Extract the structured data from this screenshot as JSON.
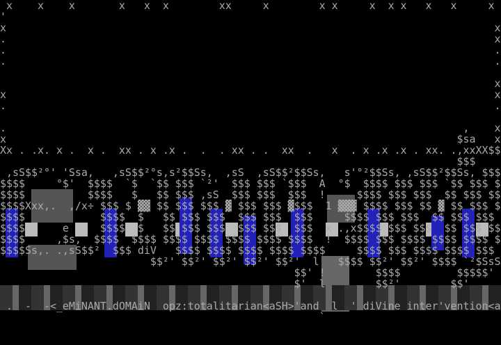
{
  "lines": [
    " x    x    x       x   x  x        xx     x        x x     x  x x   x   x     x  xx",
    "'",
    "x                                                                              x",
    ".                                                                              x",
    ".                                                                              .",
    ".                                                                              .",
    "",
    "                                                                               x",
    "x                                                                              x",
    ".                                                                              .",
    "                                                                               ",
    ".                                                                         ,    x",
    "x                                                                        $sa   x",
    "Xx . .x. x .  x .  xx . x .x .  .  . xx . .  xx  .   x  . x .x .x . xx. .,xxXX$$$XXxx",
    "                                                                         $$$",
    " ,sS$$²°' 'Ssa,   ,sS$$²°s,s²$$Ss,  ,sS  ,sS$$²$$Ss,   s'°²$$Ss, ,sS$$²$$Ss, $$$",
    "$$$$     °$'  $$$$  `$  `$$ $$$ `²'  $$$ $$$ `$$$  A  °$  $$$$ $$$ $$$ `$$ $$$ $$$",
    "$$$$          $$$$   $   $$ $$$ ,sS  $$$ $$$  $$$  !     $$$$ $$$ $$$  $$ $$$ $$$",
    "$$$$Xxx,.  ,/x÷ $$$ $ ▓▓ $$ $$$ $$$ ▓ $$$ $$$ ▓$$$  1 ▓▓▓ $$$$ $$$ $$ ▓ $$ $$$ $$$",
    "$$$$            $$$$  $   $$ $$$ $$$  $$$ $$$  $$$     $$$$ $$$ $$$  $$ $$$ $$$",
    "$$$$      e     $$$$  $   $$ $$$ $$$  $$$ $$$  $$$  x .,x$$$$ $$$ $$$  $$ $$$ $$$",
    "$$$$     ,$s,  $$$$  $$$$ $$$$ $$$$ $$$$ $$$$ $$$$  !  $$$$ $$$ $$$$ $$$$ $$$$ $$$",
    "$$$$Ss,. .,sS$$²  $$$ diV   $$$$ $$$$ $$$$ $$$$ $$$$     $$$$ $$$ $$$$ $$$$ $$$  !",
    "                        $$²' $$²' $$²' $$²' $$²'  l   $$$$ $$²' $$²' $$$$ `²$SsS$$",
    "                                               $$' !        $$$$         $$$$$'",
    "                                               $'  l        $$²'        $$'",
    "",
    " .  -  -<_eMiNANT.dOMAiN  opz:totalitarian<aSH>'and  l  ' diVine inter'vention<ash",
    "                                                   `"
  ]
}
